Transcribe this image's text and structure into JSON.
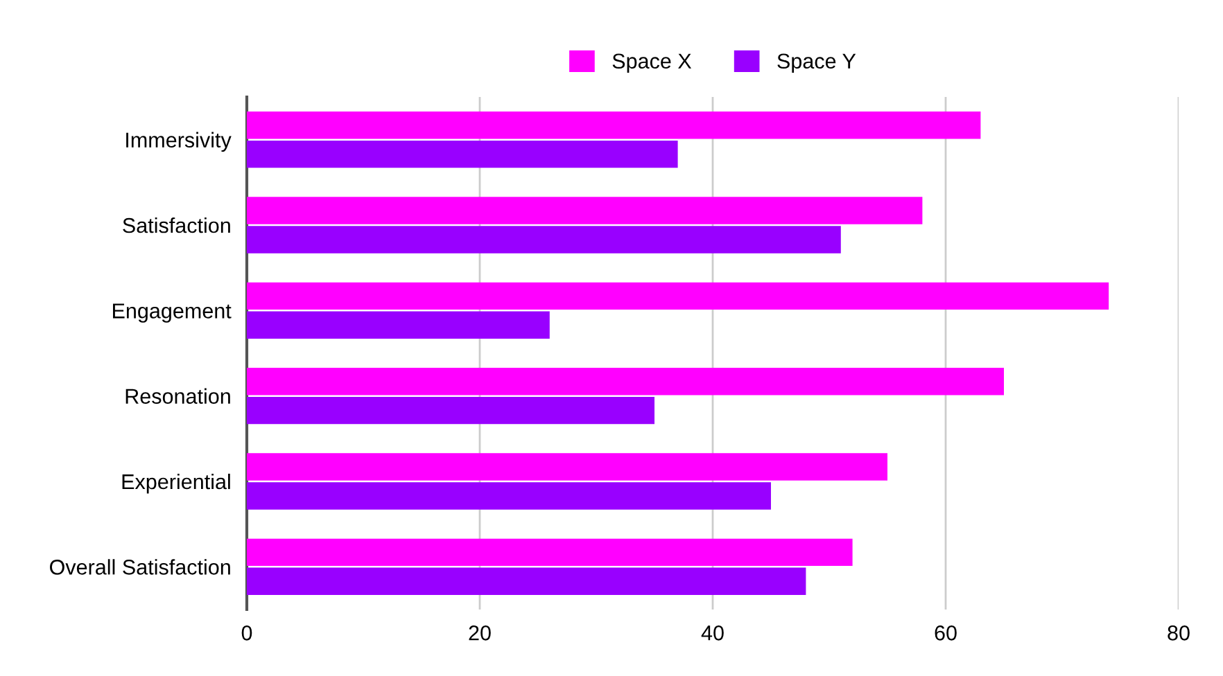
{
  "chart_data": {
    "type": "bar",
    "orientation": "horizontal",
    "categories": [
      "Immersivity",
      "Satisfaction",
      "Engagement",
      "Resonation",
      "Experiential",
      "Overall Satisfaction"
    ],
    "series": [
      {
        "name": "Space X",
        "color": "#ff00ff",
        "values": [
          63,
          58,
          74,
          65,
          55,
          52
        ]
      },
      {
        "name": "Space Y",
        "color": "#9900ff",
        "values": [
          37,
          51,
          26,
          35,
          45,
          48
        ]
      }
    ],
    "xlim": [
      0,
      80
    ],
    "xticks": [
      0,
      20,
      40,
      60,
      80
    ],
    "grid": "x",
    "legend": "top"
  }
}
